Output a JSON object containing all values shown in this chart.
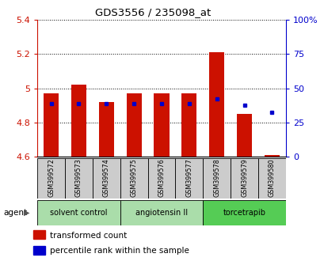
{
  "title": "GDS3556 / 235098_at",
  "samples": [
    "GSM399572",
    "GSM399573",
    "GSM399574",
    "GSM399575",
    "GSM399576",
    "GSM399577",
    "GSM399578",
    "GSM399579",
    "GSM399580"
  ],
  "red_values": [
    4.97,
    5.02,
    4.92,
    4.97,
    4.97,
    4.97,
    5.21,
    4.85,
    4.61
  ],
  "blue_values": [
    4.91,
    4.91,
    4.91,
    4.91,
    4.91,
    4.91,
    4.94,
    4.9,
    4.86
  ],
  "base_value": 4.6,
  "ylim_left": [
    4.6,
    5.4
  ],
  "ylim_right": [
    0,
    100
  ],
  "yticks_left": [
    4.6,
    4.8,
    5.0,
    5.2,
    5.4
  ],
  "ytick_labels_left": [
    "4.6",
    "4.8",
    "5",
    "5.2",
    "5.4"
  ],
  "yticks_right": [
    0,
    25,
    50,
    75,
    100
  ],
  "ytick_labels_right": [
    "0",
    "25",
    "50",
    "75",
    "100%"
  ],
  "bar_color": "#cc1100",
  "blue_dot_color": "#0000cc",
  "background_color": "#ffffff",
  "left_tick_color": "#cc1100",
  "right_tick_color": "#0000cc",
  "legend_red": "transformed count",
  "legend_blue": "percentile rank within the sample",
  "groups": [
    {
      "label": "solvent control",
      "start": 0,
      "end": 2,
      "color": "#aaddaa"
    },
    {
      "label": "angiotensin II",
      "start": 3,
      "end": 5,
      "color": "#aaddaa"
    },
    {
      "label": "torcetrapib",
      "start": 6,
      "end": 8,
      "color": "#55cc55"
    }
  ]
}
